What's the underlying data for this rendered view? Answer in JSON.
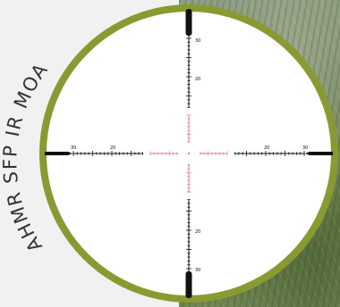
{
  "reticle": {
    "label": "AHMR SFP IR MOA",
    "marks": {
      "top_outer": "30",
      "top_inner": "20",
      "bottom_inner": "20",
      "bottom_outer": "30",
      "left_outer": "30",
      "left_inner": "20",
      "right_inner": "20",
      "right_outer": "30"
    },
    "colors": {
      "ring": "#8a9a32",
      "reticle": "#111111",
      "center": "#d9868d",
      "lens": "#ffffff",
      "label": "#333333"
    }
  }
}
